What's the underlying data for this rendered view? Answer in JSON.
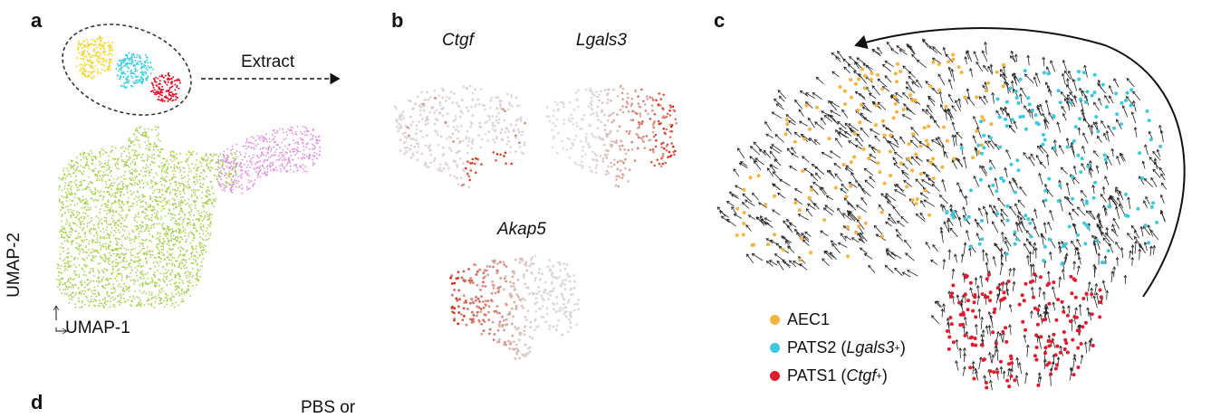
{
  "panels": {
    "a": "a",
    "b": "b",
    "c": "c",
    "d": "d"
  },
  "panel_a": {
    "extract_label": "Extract",
    "xaxis": "UMAP-1",
    "yaxis": "UMAP-2",
    "colors": {
      "yellow": "#f2d83a",
      "cyan": "#3fcde0",
      "red": "#e2142a",
      "green": "#a6cf4e",
      "pink": "#e08ae0"
    }
  },
  "panel_b": {
    "genes": [
      "Ctgf",
      "Lgals3",
      "Akap5"
    ],
    "colors": {
      "low": "#dcdcdc",
      "high": "#d12a12"
    }
  },
  "panel_c": {
    "legend": [
      {
        "name": "AEC1",
        "sup": "",
        "color": "#f5b340",
        "label_pre": "AEC1",
        "gene": "",
        "label_post": ""
      },
      {
        "name": "PATS2",
        "color": "#3cc8de",
        "label_pre": "PATS2 (",
        "gene": "Lgals3",
        "sup": "+",
        "label_post": ")"
      },
      {
        "name": "PATS1",
        "color": "#e31a2f",
        "label_pre": "PATS1 (",
        "gene": "Ctgf",
        "sup": "+",
        "label_post": ")"
      }
    ]
  },
  "panel_d": {
    "partial_text": "PBS or"
  }
}
